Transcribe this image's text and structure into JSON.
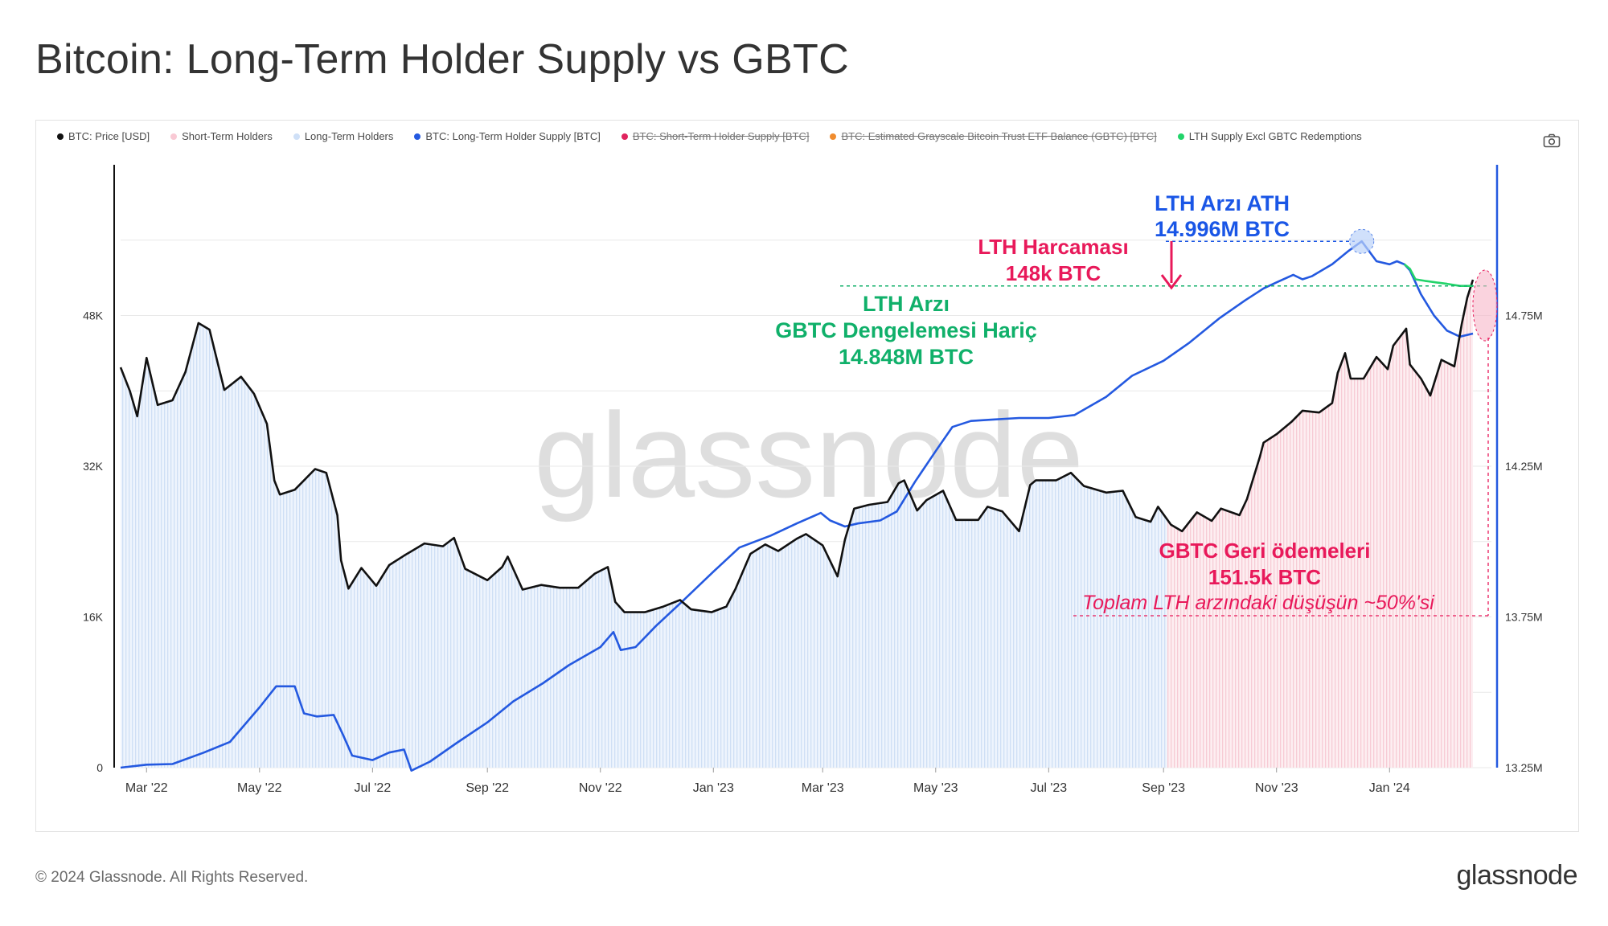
{
  "title": "Bitcoin: Long-Term Holder Supply vs GBTC",
  "legend": [
    {
      "label": "BTC: Price [USD]",
      "color": "#111111",
      "hidden": false
    },
    {
      "label": "Short-Term Holders",
      "color": "#f9c9d4",
      "hidden": false
    },
    {
      "label": "Long-Term Holders",
      "color": "#cfe0f7",
      "hidden": false
    },
    {
      "label": "BTC: Long-Term Holder Supply [BTC]",
      "color": "#2459e0",
      "hidden": false
    },
    {
      "label": "BTC: Short-Term Holder Supply [BTC]",
      "color": "#e0245e",
      "hidden": true
    },
    {
      "label": "BTC: Estimated Grayscale Bitcoin Trust ETF Balance (GBTC) [BTC]",
      "color": "#f08c2e",
      "hidden": true
    },
    {
      "label": "LTH Supply Excl GBTC Redemptions",
      "color": "#22d46a",
      "hidden": false
    }
  ],
  "watermark": "glassnode",
  "footer": {
    "copyright": "© 2024 Glassnode. All Rights Reserved.",
    "logo": "glassnode"
  },
  "annotations": {
    "ath_line1": "LTH Arzı ATH",
    "ath_line2": "14.996M BTC",
    "spend_line1": "LTH Harcaması",
    "spend_line2": "148k BTC",
    "excl_line1": "LTH Arzı",
    "excl_line2": "GBTC Dengelemesi Hariç",
    "excl_line3": "14.848M BTC",
    "gbtc_line1": "GBTC Geri ödemeleri",
    "gbtc_line2": "151.5k BTC",
    "gbtc_line3": "Toplam LTH arzındaki düşüşün ~50%'si"
  },
  "colors": {
    "price": "#111111",
    "lth_supply": "#2459e0",
    "lth_excl": "#22d46a",
    "lth_area": "#cfe0f7",
    "sth_area": "#f9c9d4",
    "annot_red": "#e8195a",
    "annot_green": "#10b06a",
    "annot_blue": "#1a56e6"
  },
  "chart_data": {
    "type": "line",
    "x_tick_labels": [
      "Mar '22",
      "May '22",
      "Jul '22",
      "Sep '22",
      "Nov '22",
      "Jan '23",
      "Mar '23",
      "May '23",
      "Jul '23",
      "Sep '23",
      "Nov '23",
      "Jan '24"
    ],
    "y_left": {
      "ticks": [
        "0",
        "16K",
        "32K",
        "48K"
      ],
      "values": [
        0,
        16000,
        32000,
        48000
      ],
      "range": [
        0,
        64000
      ]
    },
    "y_right": {
      "ticks": [
        "13.25M",
        "13.75M",
        "14.25M",
        "14.75M"
      ],
      "values": [
        13.25,
        13.75,
        14.25,
        14.75
      ],
      "range": [
        13.25,
        15.25
      ]
    },
    "x_range": [
      "2022-02-15",
      "2024-02-25"
    ],
    "sth_region_start": "2023-09-03",
    "grid": true,
    "series": [
      {
        "name": "BTC: Price [USD]",
        "axis": "left",
        "points": [
          [
            "2022-02-15",
            42500
          ],
          [
            "2022-02-20",
            40000
          ],
          [
            "2022-02-24",
            37300
          ],
          [
            "2022-03-01",
            43500
          ],
          [
            "2022-03-07",
            38500
          ],
          [
            "2022-03-15",
            39000
          ],
          [
            "2022-03-22",
            42000
          ],
          [
            "2022-03-29",
            47200
          ],
          [
            "2022-04-04",
            46500
          ],
          [
            "2022-04-12",
            40100
          ],
          [
            "2022-04-21",
            41500
          ],
          [
            "2022-04-28",
            39700
          ],
          [
            "2022-05-05",
            36500
          ],
          [
            "2022-05-09",
            30500
          ],
          [
            "2022-05-12",
            29000
          ],
          [
            "2022-05-20",
            29500
          ],
          [
            "2022-05-31",
            31700
          ],
          [
            "2022-06-06",
            31300
          ],
          [
            "2022-06-12",
            26800
          ],
          [
            "2022-06-14",
            22000
          ],
          [
            "2022-06-18",
            19000
          ],
          [
            "2022-06-25",
            21200
          ],
          [
            "2022-07-03",
            19300
          ],
          [
            "2022-07-10",
            21500
          ],
          [
            "2022-07-18",
            22500
          ],
          [
            "2022-07-29",
            23800
          ],
          [
            "2022-08-08",
            23500
          ],
          [
            "2022-08-14",
            24400
          ],
          [
            "2022-08-20",
            21100
          ],
          [
            "2022-09-01",
            19900
          ],
          [
            "2022-09-09",
            21300
          ],
          [
            "2022-09-12",
            22400
          ],
          [
            "2022-09-20",
            18900
          ],
          [
            "2022-09-30",
            19400
          ],
          [
            "2022-10-10",
            19100
          ],
          [
            "2022-10-20",
            19100
          ],
          [
            "2022-10-29",
            20600
          ],
          [
            "2022-11-05",
            21300
          ],
          [
            "2022-11-09",
            17600
          ],
          [
            "2022-11-14",
            16500
          ],
          [
            "2022-11-25",
            16500
          ],
          [
            "2022-12-05",
            17100
          ],
          [
            "2022-12-14",
            17800
          ],
          [
            "2022-12-20",
            16800
          ],
          [
            "2022-12-31",
            16500
          ],
          [
            "2023-01-08",
            17100
          ],
          [
            "2023-01-13",
            19000
          ],
          [
            "2023-01-21",
            22700
          ],
          [
            "2023-01-29",
            23700
          ],
          [
            "2023-02-05",
            23000
          ],
          [
            "2023-02-15",
            24300
          ],
          [
            "2023-02-20",
            24800
          ],
          [
            "2023-03-01",
            23600
          ],
          [
            "2023-03-09",
            20300
          ],
          [
            "2023-03-13",
            24200
          ],
          [
            "2023-03-18",
            27500
          ],
          [
            "2023-03-26",
            27900
          ],
          [
            "2023-04-05",
            28200
          ],
          [
            "2023-04-11",
            30200
          ],
          [
            "2023-04-14",
            30500
          ],
          [
            "2023-04-21",
            27300
          ],
          [
            "2023-04-26",
            28400
          ],
          [
            "2023-05-05",
            29400
          ],
          [
            "2023-05-12",
            26300
          ],
          [
            "2023-05-24",
            26300
          ],
          [
            "2023-05-29",
            27700
          ],
          [
            "2023-06-06",
            27200
          ],
          [
            "2023-06-15",
            25100
          ],
          [
            "2023-06-21",
            30000
          ],
          [
            "2023-06-24",
            30500
          ],
          [
            "2023-07-05",
            30500
          ],
          [
            "2023-07-13",
            31300
          ],
          [
            "2023-07-20",
            29900
          ],
          [
            "2023-08-01",
            29200
          ],
          [
            "2023-08-10",
            29400
          ],
          [
            "2023-08-17",
            26600
          ],
          [
            "2023-08-25",
            26100
          ],
          [
            "2023-08-29",
            27700
          ],
          [
            "2023-09-05",
            25800
          ],
          [
            "2023-09-11",
            25100
          ],
          [
            "2023-09-19",
            27100
          ],
          [
            "2023-09-27",
            26200
          ],
          [
            "2023-10-02",
            27500
          ],
          [
            "2023-10-12",
            26800
          ],
          [
            "2023-10-16",
            28500
          ],
          [
            "2023-10-23",
            33000
          ],
          [
            "2023-10-25",
            34500
          ],
          [
            "2023-11-01",
            35400
          ],
          [
            "2023-11-09",
            36700
          ],
          [
            "2023-11-15",
            37900
          ],
          [
            "2023-11-24",
            37700
          ],
          [
            "2023-12-01",
            38700
          ],
          [
            "2023-12-04",
            41900
          ],
          [
            "2023-12-08",
            44000
          ],
          [
            "2023-12-11",
            41300
          ],
          [
            "2023-12-18",
            41300
          ],
          [
            "2023-12-25",
            43600
          ],
          [
            "2023-12-31",
            42300
          ],
          [
            "2024-01-03",
            44800
          ],
          [
            "2024-01-10",
            46600
          ],
          [
            "2024-01-12",
            42800
          ],
          [
            "2024-01-18",
            41300
          ],
          [
            "2024-01-23",
            39500
          ],
          [
            "2024-01-29",
            43300
          ],
          [
            "2024-02-05",
            42600
          ],
          [
            "2024-02-09",
            47100
          ],
          [
            "2024-02-12",
            49900
          ],
          [
            "2024-02-15",
            51800
          ]
        ]
      },
      {
        "name": "BTC: Long-Term Holder Supply [BTC]",
        "axis": "right",
        "points": [
          [
            "2022-02-15",
            13.25
          ],
          [
            "2022-03-01",
            13.26
          ],
          [
            "2022-03-15",
            13.262
          ],
          [
            "2022-04-01",
            13.3
          ],
          [
            "2022-04-15",
            13.335
          ],
          [
            "2022-05-01",
            13.45
          ],
          [
            "2022-05-10",
            13.52
          ],
          [
            "2022-05-20",
            13.52
          ],
          [
            "2022-05-25",
            13.43
          ],
          [
            "2022-06-01",
            13.42
          ],
          [
            "2022-06-10",
            13.425
          ],
          [
            "2022-06-15",
            13.36
          ],
          [
            "2022-06-20",
            13.29
          ],
          [
            "2022-07-01",
            13.275
          ],
          [
            "2022-07-10",
            13.3
          ],
          [
            "2022-07-18",
            13.31
          ],
          [
            "2022-07-22",
            13.24
          ],
          [
            "2022-08-01",
            13.27
          ],
          [
            "2022-08-15",
            13.33
          ],
          [
            "2022-09-01",
            13.4
          ],
          [
            "2022-09-15",
            13.47
          ],
          [
            "2022-10-01",
            13.53
          ],
          [
            "2022-10-15",
            13.59
          ],
          [
            "2022-11-01",
            13.65
          ],
          [
            "2022-11-08",
            13.7
          ],
          [
            "2022-11-12",
            13.64
          ],
          [
            "2022-11-20",
            13.65
          ],
          [
            "2022-12-01",
            13.72
          ],
          [
            "2022-12-15",
            13.8
          ],
          [
            "2023-01-01",
            13.9
          ],
          [
            "2023-01-15",
            13.98
          ],
          [
            "2023-02-01",
            14.02
          ],
          [
            "2023-02-15",
            14.06
          ],
          [
            "2023-02-28",
            14.095
          ],
          [
            "2023-03-05",
            14.07
          ],
          [
            "2023-03-13",
            14.05
          ],
          [
            "2023-03-20",
            14.06
          ],
          [
            "2023-04-01",
            14.07
          ],
          [
            "2023-04-10",
            14.1
          ],
          [
            "2023-04-20",
            14.2
          ],
          [
            "2023-05-01",
            14.3
          ],
          [
            "2023-05-10",
            14.38
          ],
          [
            "2023-05-20",
            14.4
          ],
          [
            "2023-06-01",
            14.405
          ],
          [
            "2023-06-15",
            14.41
          ],
          [
            "2023-07-01",
            14.41
          ],
          [
            "2023-07-15",
            14.42
          ],
          [
            "2023-08-01",
            14.48
          ],
          [
            "2023-08-15",
            14.55
          ],
          [
            "2023-09-01",
            14.6
          ],
          [
            "2023-09-15",
            14.66
          ],
          [
            "2023-10-01",
            14.74
          ],
          [
            "2023-10-15",
            14.8
          ],
          [
            "2023-10-25",
            14.84
          ],
          [
            "2023-11-01",
            14.86
          ],
          [
            "2023-11-10",
            14.885
          ],
          [
            "2023-11-15",
            14.87
          ],
          [
            "2023-11-20",
            14.88
          ],
          [
            "2023-12-01",
            14.92
          ],
          [
            "2023-12-10",
            14.965
          ],
          [
            "2023-12-17",
            14.996
          ],
          [
            "2023-12-25",
            14.93
          ],
          [
            "2024-01-01",
            14.92
          ],
          [
            "2024-01-05",
            14.93
          ],
          [
            "2024-01-09",
            14.92
          ],
          [
            "2024-01-12",
            14.9
          ],
          [
            "2024-01-18",
            14.82
          ],
          [
            "2024-01-25",
            14.75
          ],
          [
            "2024-02-01",
            14.7
          ],
          [
            "2024-02-08",
            14.68
          ],
          [
            "2024-02-15",
            14.69
          ]
        ]
      },
      {
        "name": "LTH Supply Excl GBTC Redemptions",
        "axis": "right",
        "points": [
          [
            "2024-01-09",
            14.92
          ],
          [
            "2024-01-12",
            14.905
          ],
          [
            "2024-01-15",
            14.87
          ],
          [
            "2024-01-20",
            14.865
          ],
          [
            "2024-01-26",
            14.86
          ],
          [
            "2024-02-01",
            14.855
          ],
          [
            "2024-02-08",
            14.848
          ],
          [
            "2024-02-15",
            14.848
          ]
        ]
      }
    ],
    "annotations": [
      {
        "label": "LTH Arzı ATH 14.996M BTC",
        "value": 14.996
      },
      {
        "label": "LTH Arzı GBTC Dengelemesi Hariç 14.848M BTC",
        "value": 14.848
      },
      {
        "label": "LTH Harcaması 148k BTC"
      },
      {
        "label": "GBTC Geri ödemeleri 151.5k BTC"
      }
    ]
  }
}
